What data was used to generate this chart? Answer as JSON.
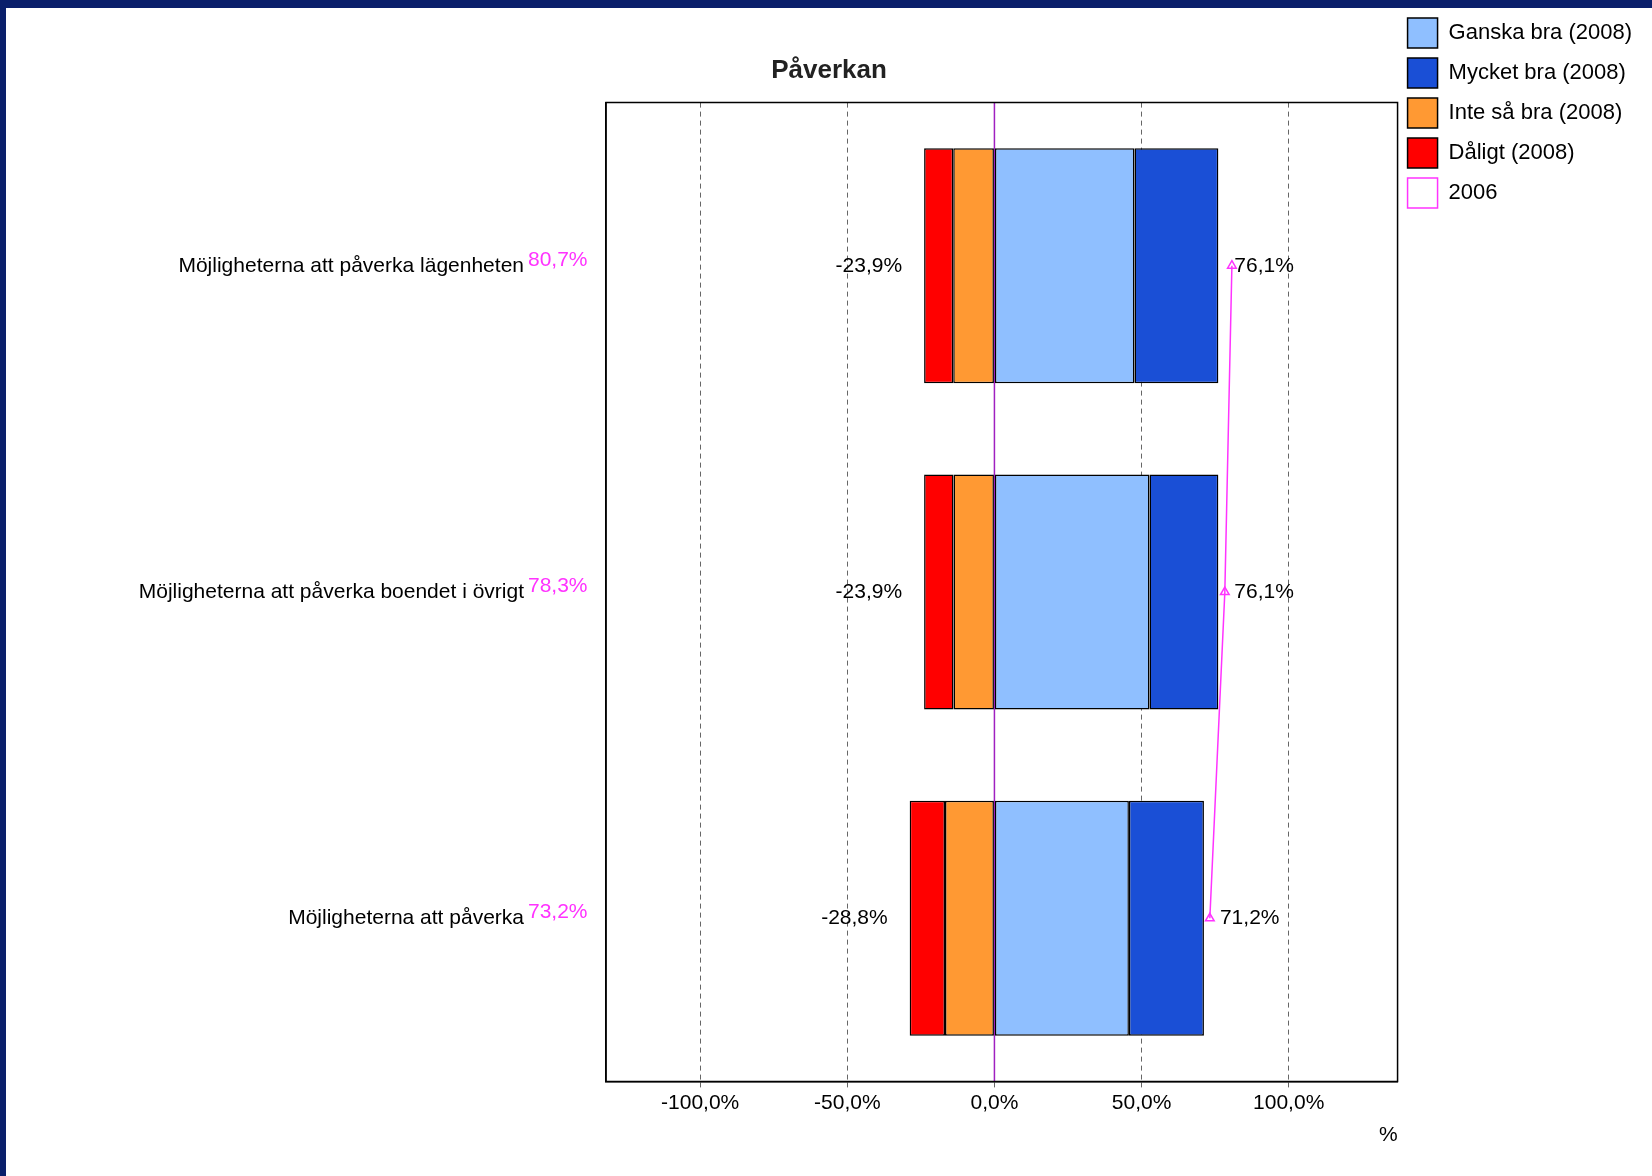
{
  "chart_data": {
    "type": "bar",
    "orientation": "horizontal",
    "stacked": true,
    "title": "Påverkan",
    "xlabel": "%",
    "categories": [
      "Möjligheterna att påverka lägenheten",
      "Möjligheterna att påverka boendet i övrigt",
      "Möjligheterna att påverka"
    ],
    "series": [
      {
        "name": "Ganska bra (2008)",
        "color": "#8fbfff",
        "values": [
          47.6,
          52.7,
          45.7
        ]
      },
      {
        "name": "Mycket bra (2008)",
        "color": "#1a4fd6",
        "values": [
          28.5,
          23.4,
          25.5
        ]
      },
      {
        "name": "Inte så bra (2008)",
        "color": "#ff9933",
        "values": [
          -14.0,
          -13.9,
          -16.8
        ]
      },
      {
        "name": "Dåligt (2008)",
        "color": "#ff0000",
        "values": [
          -9.9,
          -10.0,
          -12.0
        ]
      },
      {
        "name": "2006",
        "type": "line",
        "color": "#ff33ff",
        "marker": "triangle",
        "values": [
          80.7,
          78.3,
          73.2
        ],
        "value_labels": [
          "80,7%",
          "78,3%",
          "73,2%"
        ]
      }
    ],
    "xlim": [
      -132,
      137
    ],
    "xticks": [
      {
        "value": -100,
        "label": "-100,0%"
      },
      {
        "value": -50,
        "label": "-50,0%"
      },
      {
        "value": 0,
        "label": "0,0%"
      },
      {
        "value": 50,
        "label": "50,0%"
      },
      {
        "value": 100,
        "label": "100,0%"
      }
    ],
    "grid": "x",
    "legend": "top right",
    "ref_lines": [
      {
        "axis": "x",
        "value": 0,
        "color": "#a020c0"
      }
    ],
    "annotations": [
      {
        "text": "-23,9%",
        "x": -23.9,
        "y": "Möjligheterna att påverka lägenheten"
      },
      {
        "text": "76,1%",
        "x": 76.1,
        "y": "Möjligheterna att påverka lägenheten"
      },
      {
        "text": "-23,9%",
        "x": -23.9,
        "y": "Möjligheterna att påverka boendet i övrigt"
      },
      {
        "text": "76,1%",
        "x": 76.1,
        "y": "Möjligheterna att påverka boendet i övrigt"
      },
      {
        "text": "-28,8%",
        "x": -28.8,
        "y": "Möjligheterna att påverka"
      },
      {
        "text": "71,2%",
        "x": 71.2,
        "y": "Möjligheterna att påverka"
      }
    ]
  }
}
